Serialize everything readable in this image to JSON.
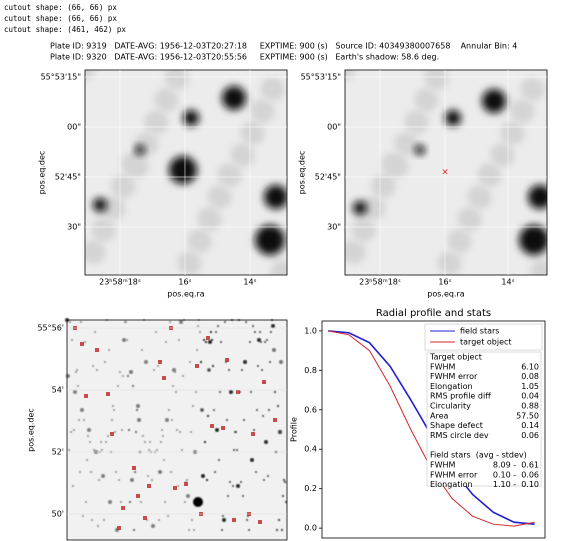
{
  "log_lines": [
    "cutout shape: (66, 66) px",
    "cutout shape: (66, 66) px",
    "cutout shape: (461, 462) px"
  ],
  "header": [
    "Plate ID: 9319   DATE-AVG: 1956-12-03T20:27:18     EXPTIME: 900 (s)   Source ID: 40349380007658    Annular Bin: 4",
    "Plate ID: 9320   DATE-AVG: 1956-12-03T20:55:56     EXPTIME: 900 (s)   Earth's shadow: 58.6 deg."
  ],
  "panels": [
    {
      "ylabel": "pos.eq.dec",
      "xlabel": "pos.eq.ra",
      "yticks": [
        "55°53'15\"",
        "00\"",
        "52'45\"",
        "30\""
      ],
      "xticks": [
        "23ʰ58ᵐ18ˢ",
        "16ˢ",
        "14ˢ"
      ]
    },
    {
      "ylabel": "pos.eq.dec",
      "xlabel": "pos.eq.ra",
      "yticks": [
        "55°53'15\"",
        "00\"",
        "52'45\"",
        "30\""
      ],
      "xticks": [
        "23ʰ58ᵐ18ˢ",
        "16ˢ",
        "14ˢ"
      ]
    },
    {
      "ylabel": "pos.eq.dec",
      "yticks": [
        "55°56'",
        "54'",
        "52'",
        "50'"
      ]
    }
  ],
  "chart_data": {
    "type": "line",
    "title": "Radial profile and stats",
    "ylabel": "Profile",
    "x": [
      0,
      1,
      2,
      3,
      4,
      5,
      6,
      7,
      8,
      9,
      10
    ],
    "series": [
      {
        "name": "field stars",
        "color": "#1f1fd0",
        "values": [
          1.0,
          0.99,
          0.94,
          0.82,
          0.65,
          0.47,
          0.3,
          0.17,
          0.08,
          0.03,
          0.02
        ]
      },
      {
        "name": "target object",
        "color": "#d62728",
        "values": [
          1.0,
          0.98,
          0.9,
          0.72,
          0.5,
          0.3,
          0.15,
          0.06,
          0.02,
          0.01,
          0.03
        ]
      }
    ],
    "xlim": [
      -0.3,
      10.5
    ],
    "ylim": [
      -0.05,
      1.05
    ],
    "yticks": [
      {
        "value": 0,
        "label": "0.0"
      },
      0.2,
      0.4,
      0.6,
      0.8,
      {
        "value": 1,
        "label": "1.0"
      }
    ],
    "legend": "upper right",
    "stats": [
      {
        "label": "Target object"
      },
      {
        "label": "FWHM",
        "value": "6.10"
      },
      {
        "label": "FWHM error",
        "value": "0.08"
      },
      {
        "label": "Elongation",
        "value": "1.05"
      },
      {
        "label": "RMS profile diff",
        "value": "0.04"
      },
      {
        "label": "Circularity",
        "value": "0.88"
      },
      {
        "label": "Area",
        "value": "57.50"
      },
      {
        "label": "Shape defect",
        "value": "0.14"
      },
      {
        "label": "RMS circle dev",
        "value": "0.06"
      },
      {
        "label": "Field stars  (avg - stdev)"
      },
      {
        "label": "FWHM",
        "value": "8.09 -  0.61"
      },
      {
        "label": "FWHM error",
        "value": "0.10 -  0.06"
      },
      {
        "label": "Elongation",
        "value": "1.10 -  0.10"
      }
    ]
  }
}
